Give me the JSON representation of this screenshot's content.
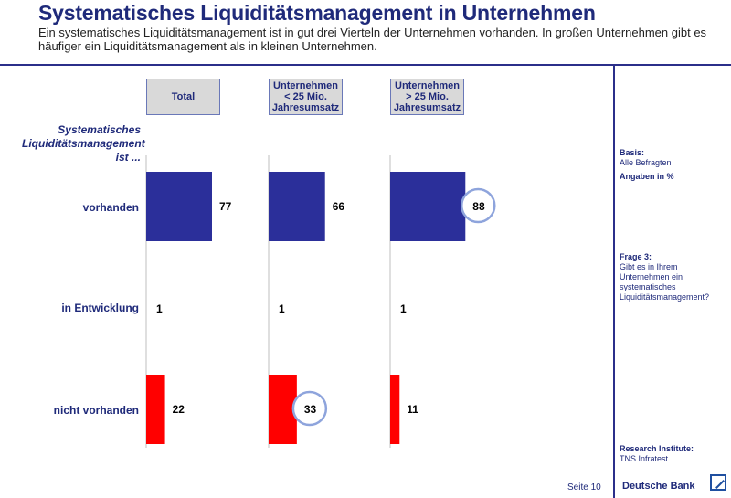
{
  "header": {
    "title": "Systematisches Liquiditätsmanagement in Unternehmen",
    "subtitle": "Ein systematisches Liquiditätsmanagement ist in gut drei Vierteln der Unternehmen vorhanden. In großen Unternehmen gibt es häufiger ein Liquiditätsmanagement als in kleinen Unternehmen."
  },
  "chart_data": {
    "type": "bar",
    "orientation": "horizontal",
    "question_label": "Systematisches Liquiditätsmanagement ist ...",
    "categories": [
      "vorhanden",
      "in Entwicklung",
      "nicht vorhanden"
    ],
    "bar_colors": [
      "#2b2f9a",
      "#2b2f9a",
      "#ff0000"
    ],
    "highlight_color": "#8ea4dc",
    "series": [
      {
        "name": "Total",
        "values": [
          77,
          1,
          22
        ],
        "highlight": [
          false,
          false,
          false
        ]
      },
      {
        "name": "Unternehmen\n< 25 Mio.\nJahresumsatz",
        "values": [
          66,
          1,
          33
        ],
        "highlight": [
          false,
          false,
          true
        ]
      },
      {
        "name": "Unternehmen\n> 25 Mio.\nJahresumsatz",
        "values": [
          88,
          1,
          11
        ],
        "highlight": [
          true,
          false,
          false
        ]
      }
    ],
    "xlim": [
      0,
      100
    ]
  },
  "sidebar": {
    "basis_label": "Basis:",
    "basis_value": "Alle Befragten",
    "unit_note": "Angaben in %",
    "question_label": "Frage 3:",
    "question_text": "Gibt es in Ihrem Unternehmen ein systematisches Liquiditätsmanagement?",
    "institute_label": "Research Institute:",
    "institute_value": "TNS Infratest"
  },
  "footer": {
    "page": "Seite 10",
    "brand": "Deutsche Bank"
  }
}
